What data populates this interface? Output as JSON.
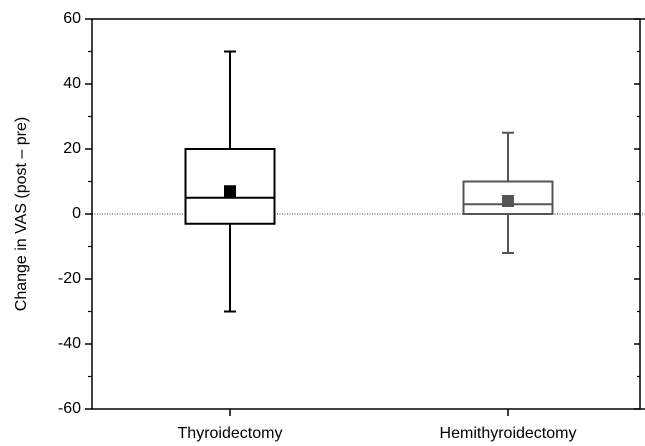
{
  "chart_data": {
    "type": "box",
    "y_label": "Change in VAS (post – pre)",
    "categories": [
      "Thyroidectomy",
      "Hemithyroidectomy"
    ],
    "boxes": [
      {
        "min": -30,
        "q1": -3,
        "median": 5,
        "q3": 20,
        "max": 50,
        "mean": 7,
        "color": "#000000"
      },
      {
        "min": -12,
        "q1": 0,
        "median": 3,
        "q3": 10,
        "max": 25,
        "mean": 4,
        "color": "#555555"
      }
    ],
    "ylim": [
      -60,
      60
    ],
    "yticks": [
      -60,
      -40,
      -20,
      0,
      20,
      40,
      60
    ],
    "zero_line": true
  }
}
